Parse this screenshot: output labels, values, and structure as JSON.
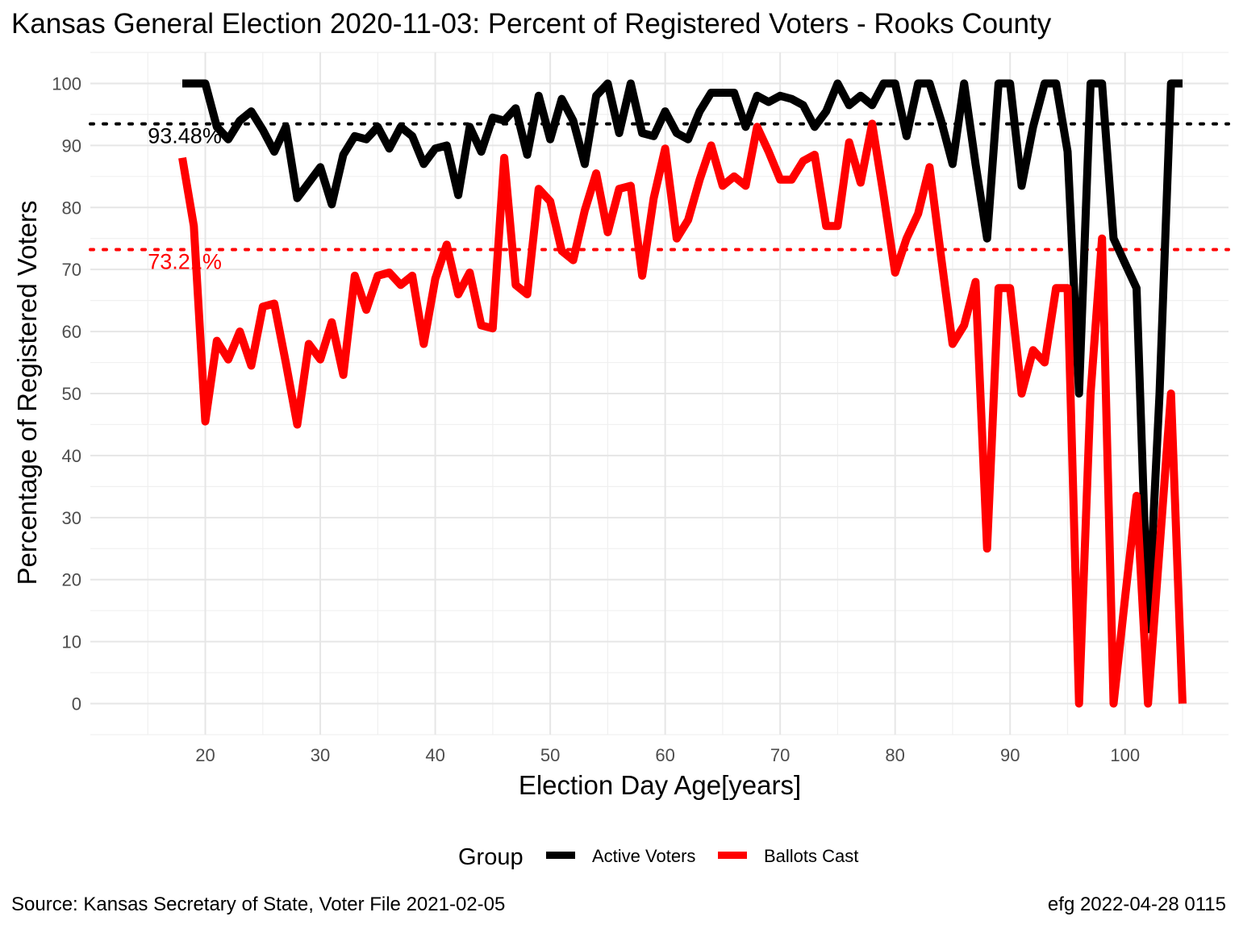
{
  "title": "Kansas General Election 2020-11-03:  Percent of Registered Voters - Rooks County",
  "caption_left": "Source:  Kansas Secretary of State, Voter File  2021-02-05",
  "caption_right": "efg 2022-04-28 0115",
  "chart_data": {
    "type": "line",
    "xlabel": "Election Day Age[years]",
    "ylabel": "Percentage of Registered Voters",
    "xlim": [
      10,
      109
    ],
    "ylim": [
      -5,
      105
    ],
    "xticks": [
      20,
      30,
      40,
      50,
      60,
      70,
      80,
      90,
      100
    ],
    "yticks": [
      0,
      10,
      20,
      30,
      40,
      50,
      60,
      70,
      80,
      90,
      100
    ],
    "grid": true,
    "legend": {
      "title": "Group",
      "position": "bottom"
    },
    "reference_lines": [
      {
        "value": 93.48,
        "label": "93.48%",
        "color": "#000000"
      },
      {
        "value": 73.21,
        "label": "73.21%",
        "color": "#ff0000"
      }
    ],
    "series": [
      {
        "name": "Active Voters",
        "color": "#000000",
        "x": [
          18,
          19,
          20,
          21,
          22,
          23,
          24,
          25,
          26,
          27,
          28,
          29,
          30,
          31,
          32,
          33,
          34,
          35,
          36,
          37,
          38,
          39,
          40,
          41,
          42,
          43,
          44,
          45,
          46,
          47,
          48,
          49,
          50,
          51,
          52,
          53,
          54,
          55,
          56,
          57,
          58,
          59,
          60,
          61,
          62,
          63,
          64,
          65,
          66,
          67,
          68,
          69,
          70,
          71,
          72,
          73,
          74,
          75,
          76,
          77,
          78,
          79,
          80,
          81,
          82,
          83,
          84,
          85,
          86,
          87,
          88,
          89,
          90,
          91,
          92,
          93,
          94,
          95,
          96,
          97,
          98,
          99,
          100,
          101,
          102,
          103,
          104,
          105
        ],
        "values": [
          100,
          100,
          100,
          93,
          91,
          94,
          95.5,
          92.5,
          89,
          93,
          81.5,
          84,
          86.5,
          80.5,
          88.5,
          91.5,
          91,
          93,
          89.5,
          93,
          91.5,
          87,
          89.5,
          90,
          82,
          93,
          89,
          94.5,
          94,
          96,
          88.5,
          98,
          91,
          97.5,
          94,
          87,
          98,
          100,
          92,
          100,
          92,
          91.5,
          95.5,
          92,
          91,
          95.5,
          98.5,
          98.5,
          98.5,
          93,
          98,
          97,
          98,
          97.5,
          96.5,
          93,
          95.5,
          100,
          96.5,
          98,
          96.5,
          100,
          100,
          91.5,
          100,
          100,
          94,
          87,
          100,
          87,
          75,
          100,
          100,
          83.5,
          93,
          100,
          100,
          89,
          50,
          100,
          100,
          75,
          71,
          67,
          12,
          50,
          100,
          100
        ]
      },
      {
        "name": "Ballots Cast",
        "color": "#ff0000",
        "x": [
          18,
          19,
          20,
          21,
          22,
          23,
          24,
          25,
          26,
          27,
          28,
          29,
          30,
          31,
          32,
          33,
          34,
          35,
          36,
          37,
          38,
          39,
          40,
          41,
          42,
          43,
          44,
          45,
          46,
          47,
          48,
          49,
          50,
          51,
          52,
          53,
          54,
          55,
          56,
          57,
          58,
          59,
          60,
          61,
          62,
          63,
          64,
          65,
          66,
          67,
          68,
          69,
          70,
          71,
          72,
          73,
          74,
          75,
          76,
          77,
          78,
          79,
          80,
          81,
          82,
          83,
          84,
          85,
          86,
          87,
          88,
          89,
          90,
          91,
          92,
          93,
          94,
          95,
          96,
          97,
          98,
          99,
          100,
          101,
          102,
          103,
          104,
          105
        ],
        "values": [
          88,
          77,
          45.5,
          58.5,
          55.5,
          60,
          54.5,
          64,
          64.5,
          55,
          45,
          58,
          55.5,
          61.5,
          53,
          69,
          63.5,
          69,
          69.5,
          67.5,
          69,
          58,
          68.5,
          74,
          66,
          69.5,
          61,
          60.5,
          88,
          67.5,
          66,
          83,
          81,
          73,
          71.5,
          79.5,
          85.5,
          76,
          83,
          83.5,
          69,
          81.5,
          89.5,
          75,
          78,
          84.5,
          90,
          83.5,
          85,
          83.5,
          93,
          89,
          84.5,
          84.5,
          87.5,
          88.5,
          77,
          77,
          90.5,
          84,
          93.5,
          82,
          69.5,
          75,
          79,
          86.5,
          72,
          58,
          61,
          68,
          25,
          67,
          67,
          50,
          57,
          55,
          67,
          67,
          0,
          50,
          75,
          0,
          17,
          33.5,
          0,
          25,
          50,
          0
        ]
      }
    ]
  }
}
